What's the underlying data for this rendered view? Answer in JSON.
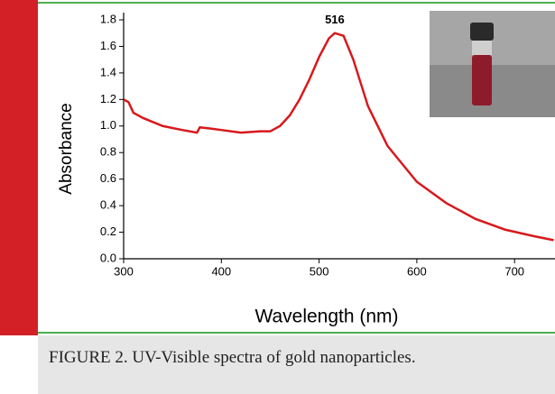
{
  "chart_data": {
    "type": "line",
    "annotation": "516",
    "ylabel": "Absorbance",
    "xlabel": "Wavelength (nm)",
    "x": [
      300,
      305,
      310,
      320,
      340,
      360,
      375,
      378,
      390,
      400,
      420,
      440,
      450,
      460,
      470,
      480,
      490,
      500,
      510,
      516,
      525,
      535,
      550,
      570,
      600,
      630,
      660,
      690,
      720,
      740
    ],
    "series": [
      {
        "name": "Absorbance",
        "color": "#d7191c",
        "values": [
          1.2,
          1.18,
          1.1,
          1.06,
          1.0,
          0.97,
          0.95,
          0.99,
          0.98,
          0.97,
          0.95,
          0.96,
          0.96,
          1.0,
          1.08,
          1.2,
          1.35,
          1.52,
          1.66,
          1.7,
          1.68,
          1.5,
          1.15,
          0.85,
          0.58,
          0.42,
          0.3,
          0.22,
          0.17,
          0.14
        ]
      }
    ],
    "xlim": [
      300,
      740
    ],
    "xticks": [
      300,
      400,
      500,
      600,
      700
    ],
    "ylim": [
      0,
      1.8
    ],
    "yticks": [
      {
        "value": 0,
        "label": "0.0"
      },
      0.2,
      0.4,
      0.6,
      0.8,
      {
        "value": 1,
        "label": "1.0"
      },
      1.2,
      1.4,
      1.6,
      1.8
    ]
  },
  "caption": "FIGURE 2. UV-Visible spectra of gold nanoparticles."
}
